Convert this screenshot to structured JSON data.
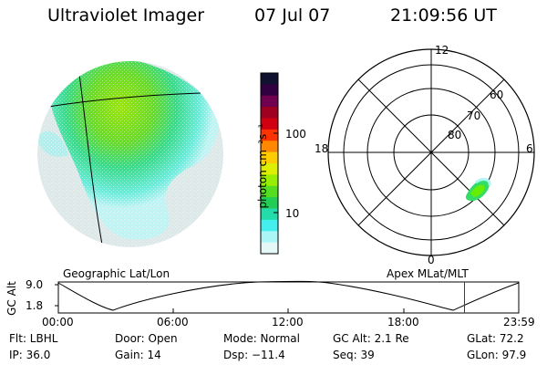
{
  "header": {
    "instrument": "Ultraviolet Imager",
    "date": "07 Jul 07",
    "time": "21:09:56 UT"
  },
  "colorbar": {
    "label": "photon cm⁻²s⁻¹",
    "ticks": [
      "100",
      "10"
    ],
    "colors": [
      "#101030",
      "#300040",
      "#700050",
      "#a00020",
      "#d00010",
      "#ff3300",
      "#ff8800",
      "#ffcc00",
      "#ddee00",
      "#99ee00",
      "#55dd22",
      "#22cc55",
      "#22ddaa",
      "#44eeee",
      "#aaf6f6",
      "#e4f8f8"
    ]
  },
  "polar": {
    "mlt_labels": {
      "top": "12",
      "left": "18",
      "right": "6",
      "bottom": "0"
    },
    "lat_labels": [
      "60",
      "70",
      "80"
    ]
  },
  "timeline": {
    "ylabel": "GC Alt",
    "yticks": [
      "9.0",
      "1.8"
    ],
    "left_title": "Geographic Lat/Lon",
    "right_title": "Apex MLat/MLT",
    "xticks": [
      "00:00",
      "06:00",
      "12:00",
      "18:00",
      "23:59"
    ],
    "marker_time_hours": 21.17,
    "marker_color": "#cc0000"
  },
  "info": {
    "filter": "Flt: LBHL",
    "ip": "IP: 36.0",
    "door": "Door: Open",
    "gain": "Gain: 14",
    "mode": "Mode: Normal",
    "dsp": "Dsp: −11.4",
    "gc_alt": "GC Alt: 2.1 Re",
    "seq": "Seq: 39",
    "glat": "GLat: 72.2",
    "glon": "GLon: 97.9"
  }
}
